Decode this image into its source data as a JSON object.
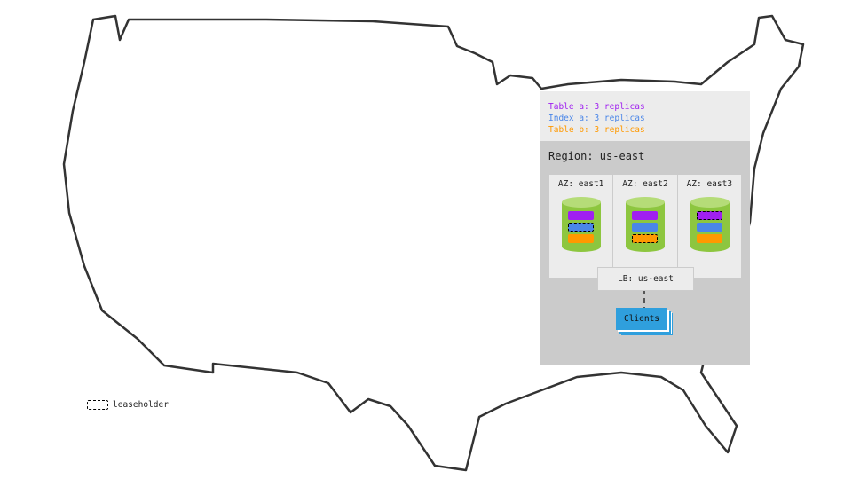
{
  "legend": [
    {
      "label": "Table a: 3 replicas",
      "color": "#a020f0"
    },
    {
      "label": "Index a: 3 replicas",
      "color": "#4a86e8"
    },
    {
      "label": "Table b: 3 replicas",
      "color": "#ff9900"
    }
  ],
  "region": "Region: us-east",
  "azs": [
    {
      "label": "AZ: east1",
      "leaseholder": "Index a"
    },
    {
      "label": "AZ: east2",
      "leaseholder": "Table b"
    },
    {
      "label": "AZ: east3",
      "leaseholder": "Table a"
    }
  ],
  "lb": "LB: us-east",
  "clients": "Clients",
  "leaseholder_legend": "leaseholder",
  "colors": {
    "cylinder": "#8dc63f",
    "cylinder_top": "#b5dc78",
    "clients": "#2f9fdd",
    "panel": "#cbcbcb"
  }
}
